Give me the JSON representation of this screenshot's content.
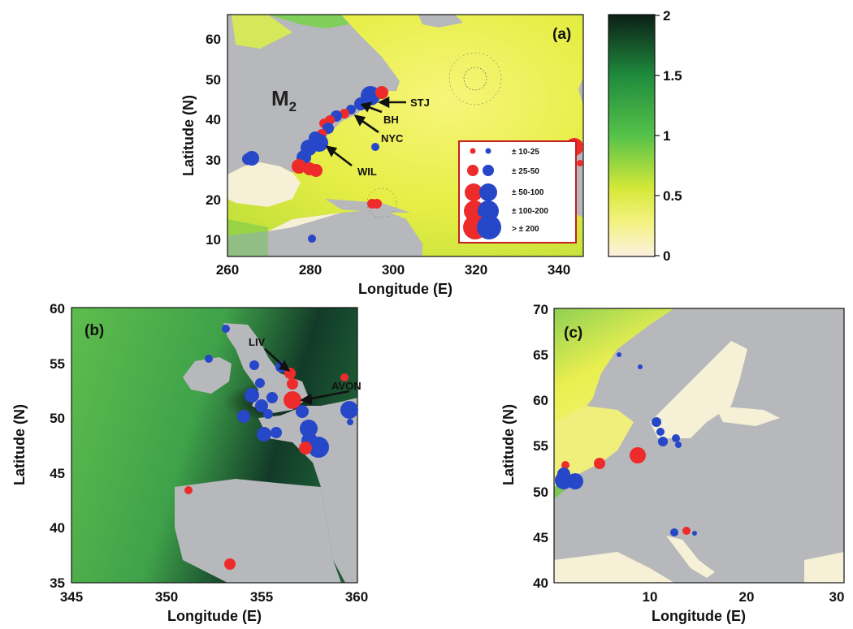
{
  "colorbar": {
    "ticks": [
      "2",
      "1.5",
      "1",
      "0.5",
      "0"
    ]
  },
  "colors": {
    "positive": "#ee2b2b",
    "negative": "#2747c9",
    "land": "#b7b8bb",
    "shallow": "#f5f0d6"
  },
  "panel_a": {
    "label": "(a)",
    "constituent": "M",
    "constituent_sub": "2",
    "xlabel": "Longitude (E)",
    "ylabel": "Latitude (N)",
    "xticks": [
      "260",
      "280",
      "300",
      "320",
      "340"
    ],
    "yticks": [
      "60",
      "50",
      "40",
      "30",
      "20",
      "10"
    ],
    "annotations": [
      "STJ",
      "BH",
      "NYC",
      "WIL"
    ],
    "legend": [
      "± 10-25",
      "± 25-50",
      "± 50-100",
      "± 100-200",
      "> ± 200"
    ]
  },
  "panel_b": {
    "label": "(b)",
    "xlabel": "Longitude (E)",
    "ylabel": "Latitude (N)",
    "xticks": [
      "345",
      "350",
      "355",
      "360"
    ],
    "yticks": [
      "60",
      "55",
      "50",
      "45",
      "40",
      "35"
    ],
    "annotations": [
      "LIV",
      "AVON"
    ]
  },
  "panel_c": {
    "label": "(c)",
    "xlabel": "Longitude (E)",
    "ylabel": "Latitude (N)",
    "xticks": [
      "10",
      "20",
      "30"
    ],
    "yticks": [
      "70",
      "65",
      "60",
      "55",
      "50",
      "45",
      "40"
    ]
  }
}
